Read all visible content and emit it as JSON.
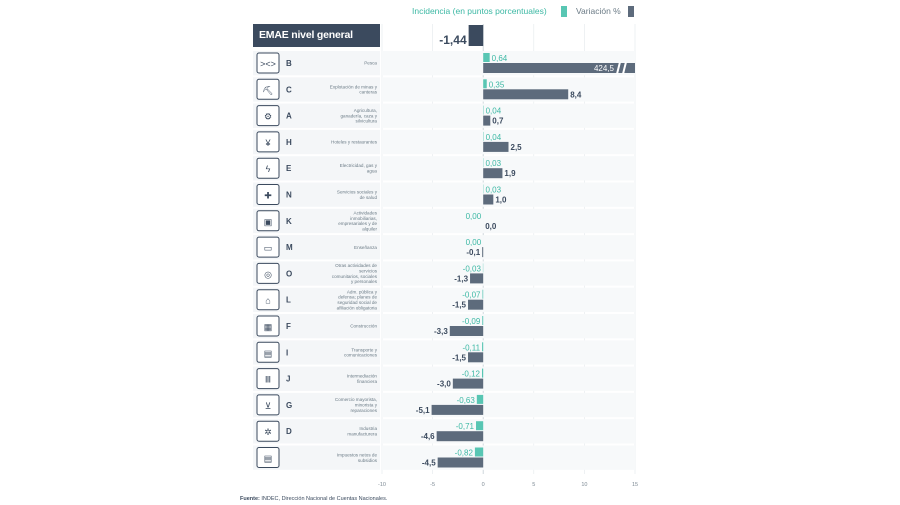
{
  "legend": {
    "incidence_label": "Incidencia (en puntos porcentuales)",
    "variation_label": "Variación %"
  },
  "colors": {
    "incidence": "#58c6b3",
    "variation": "#5d6b7c",
    "header_bg": "#3b4a5e"
  },
  "header": {
    "title": "EMAE nivel general",
    "value": "-1,44"
  },
  "source": {
    "label": "Fuente:",
    "text": "INDEC, Dirección Nacional de Cuentas Nacionales."
  },
  "chart_data": {
    "type": "bar",
    "orientation": "horizontal",
    "xlim": [
      -10,
      15
    ],
    "x_ticks": [
      "-10",
      "-5",
      "0",
      "5",
      "10",
      "15"
    ],
    "headline": {
      "label": "EMAE nivel general",
      "value": -1.44
    },
    "rows": [
      {
        "code": "B",
        "name": "Pesca",
        "icon": "fish-icon",
        "incidence": 0.64,
        "variation": 424.5,
        "incidence_label": "0,64",
        "variation_label": "424,5",
        "broken_axis": true
      },
      {
        "code": "C",
        "name": "Explotación de minas y canteras",
        "icon": "mining-icon",
        "incidence": 0.35,
        "variation": 8.4,
        "incidence_label": "0,35",
        "variation_label": "8,4"
      },
      {
        "code": "A",
        "name": "Agricultura, ganadería, caza y silvicultura",
        "icon": "tractor-icon",
        "incidence": 0.04,
        "variation": 0.7,
        "incidence_label": "0,04",
        "variation_label": "0,7"
      },
      {
        "code": "H",
        "name": "Hoteles y restaurantes",
        "icon": "cutlery-icon",
        "incidence": 0.04,
        "variation": 2.5,
        "incidence_label": "0,04",
        "variation_label": "2,5"
      },
      {
        "code": "E",
        "name": "Electricidad, gas y agua",
        "icon": "utilities-icon",
        "incidence": 0.03,
        "variation": 1.9,
        "incidence_label": "0,03",
        "variation_label": "1,9"
      },
      {
        "code": "N",
        "name": "Servicios sociales y de salud",
        "icon": "health-cross-icon",
        "incidence": 0.03,
        "variation": 1.0,
        "incidence_label": "0,03",
        "variation_label": "1,0"
      },
      {
        "code": "K",
        "name": "Actividades inmobiliarias, empresariales y de alquiler",
        "icon": "real-estate-icon",
        "incidence": 0.0,
        "variation": 0.0,
        "incidence_label": "0,00",
        "variation_label": "0,0"
      },
      {
        "code": "M",
        "name": "Enseñanza",
        "icon": "board-icon",
        "incidence": 0.0,
        "variation": -0.1,
        "incidence_label": "0,00",
        "variation_label": "-0,1"
      },
      {
        "code": "O",
        "name": "Otras actividades de servicios comunitarios, sociales y personales",
        "icon": "community-icon",
        "incidence": -0.03,
        "variation": -1.3,
        "incidence_label": "-0,03",
        "variation_label": "-1,3"
      },
      {
        "code": "L",
        "name": "Adm. pública y defensa; planes de seguridad social de afiliación obligatoria",
        "icon": "government-icon",
        "incidence": -0.07,
        "variation": -1.5,
        "incidence_label": "-0,07",
        "variation_label": "-1,5"
      },
      {
        "code": "F",
        "name": "Construcción",
        "icon": "construction-icon",
        "incidence": -0.09,
        "variation": -3.3,
        "incidence_label": "-0,09",
        "variation_label": "-3,3"
      },
      {
        "code": "I",
        "name": "Transporte y comunicaciones",
        "icon": "bus-icon",
        "incidence": -0.11,
        "variation": -1.5,
        "incidence_label": "-0,11",
        "variation_label": "-1,5"
      },
      {
        "code": "J",
        "name": "Intermediación financiera",
        "icon": "bank-icon",
        "incidence": -0.12,
        "variation": -3.0,
        "incidence_label": "-0,12",
        "variation_label": "-3,0"
      },
      {
        "code": "G",
        "name": "Comercio mayorista, minorista y reparaciones",
        "icon": "cart-icon",
        "incidence": -0.63,
        "variation": -5.1,
        "incidence_label": "-0,63",
        "variation_label": "-5,1"
      },
      {
        "code": "D",
        "name": "Industria manufacturera",
        "icon": "gears-icon",
        "incidence": -0.71,
        "variation": -4.6,
        "incidence_label": "-0,71",
        "variation_label": "-4,6"
      },
      {
        "code": "",
        "name": "Impuestos netos de subsidios",
        "icon": "tax-document-icon",
        "incidence": -0.82,
        "variation": -4.5,
        "incidence_label": "-0,82",
        "variation_label": "-4,5"
      }
    ]
  }
}
